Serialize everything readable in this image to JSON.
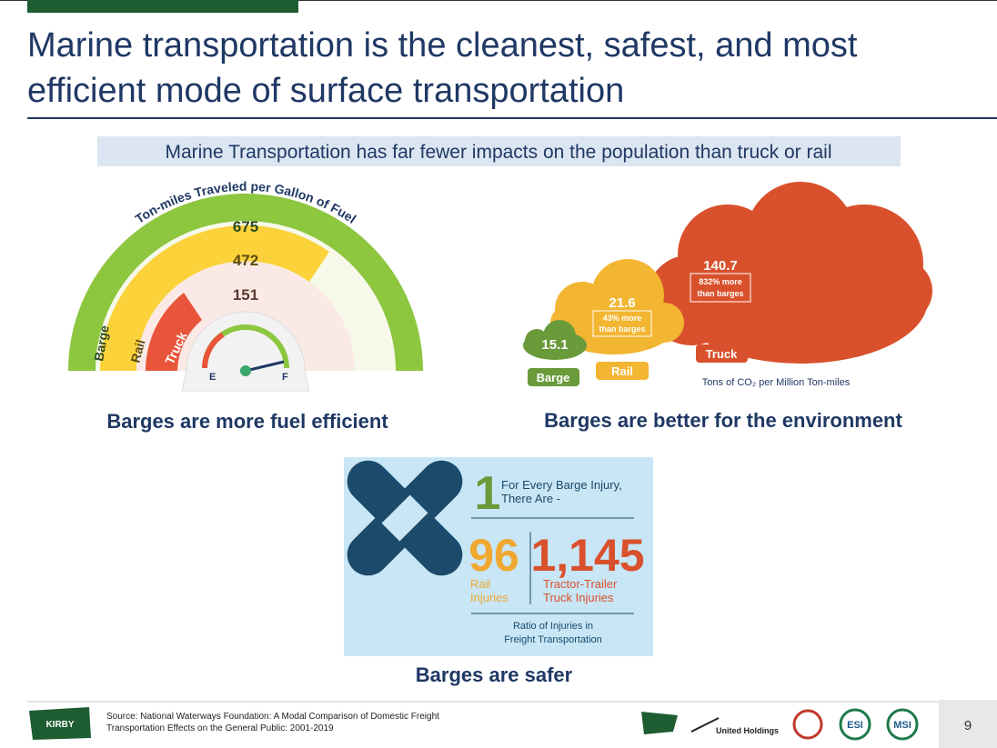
{
  "header": {
    "title": [
      "Marine transportation is the cleanest, safest, and most",
      "efficient mode of surface transportation"
    ]
  },
  "banner": "Marine Transportation has far fewer impacts on the population than truck or rail",
  "fuel": {
    "arc_title": "Ton-miles Traveled per Gallon of Fuel",
    "values": [
      675,
      472,
      151
    ],
    "modes": [
      "Barge",
      "Rail",
      "Truck"
    ],
    "gauge": [
      "E",
      "F"
    ],
    "caption": "Barges are more fuel efficient"
  },
  "emissions": {
    "values": [
      15.1,
      21.6,
      140.7
    ],
    "modes": [
      "Barge",
      "Rail",
      "Truck"
    ],
    "notes": [
      [
        "43% more",
        "than barges"
      ],
      [
        "832% more",
        "than barges"
      ]
    ],
    "unit": "Tons of CO₂ per Million Ton-miles",
    "caption": "Barges are better for the environment"
  },
  "safety": {
    "barge": 1,
    "barge_text": [
      "For Every Barge Injury,",
      "There Are -"
    ],
    "rail": 96,
    "rail_text": [
      "Rail",
      "Injuries"
    ],
    "truck": "1,145",
    "truck_text": [
      "Tractor-Trailer",
      "Truck Injuries"
    ],
    "footer": [
      "Ratio of Injuries in",
      "Freight Transportation"
    ],
    "caption": "Barges are safer"
  },
  "footer": {
    "source": [
      "Source: National Waterways Foundation: A Modal Comparison of Domestic Freight",
      "Transportation Effects on the General Public: 2001-2019"
    ],
    "logos": [
      "KIRBY",
      "United Holdings",
      "ESI",
      "MSI"
    ],
    "page": 9
  }
}
